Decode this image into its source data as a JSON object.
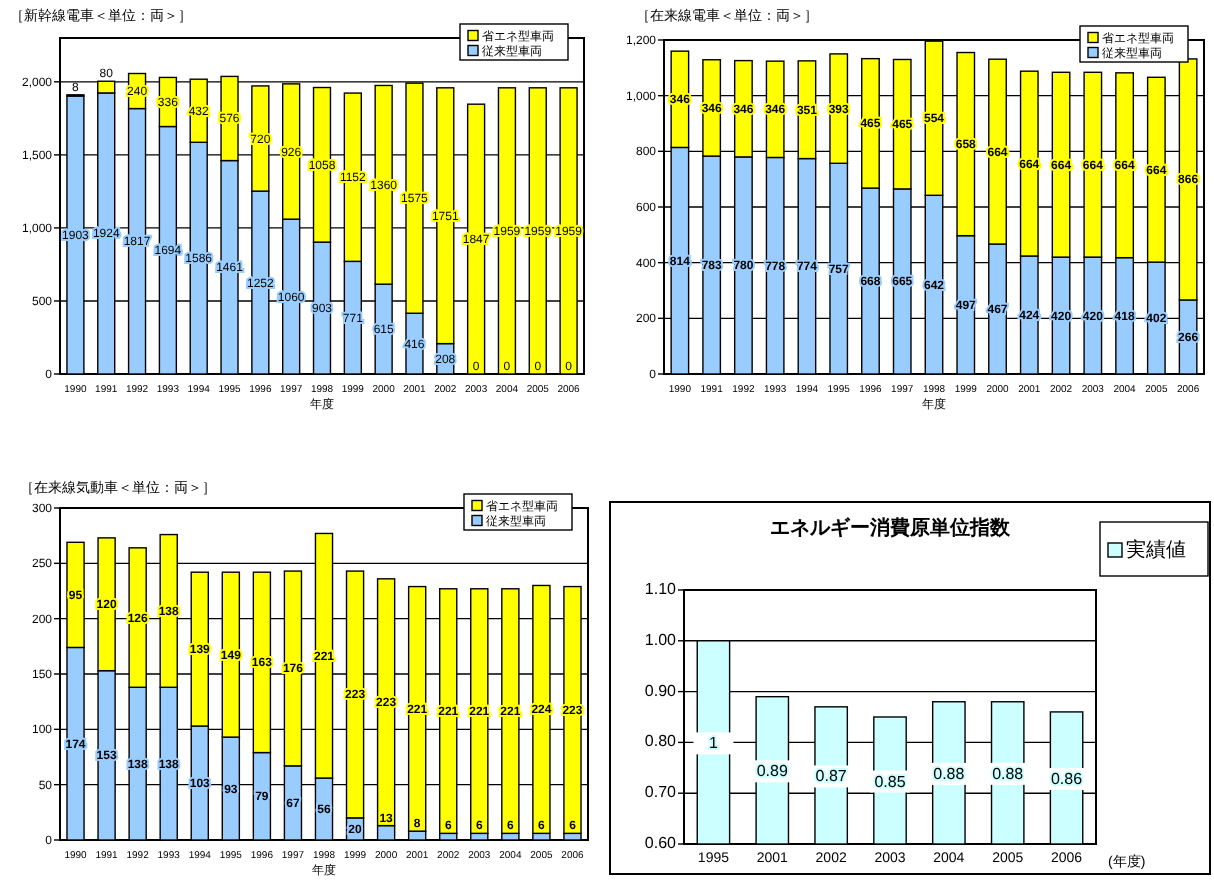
{
  "chart_data": [
    {
      "type": "bar",
      "title": "［新幹線電車＜単位：両＞］",
      "xlabel": "年度",
      "categories": [
        "1990",
        "1991",
        "1992",
        "1993",
        "1994",
        "1995",
        "1996",
        "1997",
        "1998",
        "1999",
        "2000",
        "2001",
        "2002",
        "2003",
        "2004",
        "2005",
        "2006"
      ],
      "stacked": true,
      "ylim": [
        0,
        2300
      ],
      "yticks": [
        0,
        500,
        {
          "value": 1000,
          "label": "1,000"
        },
        {
          "value": 1500,
          "label": "1,500"
        },
        {
          "value": 2000,
          "label": "2,000"
        }
      ],
      "grid": "y",
      "legend": "top right",
      "data_labels": true,
      "series": [
        {
          "name": "従来型車両",
          "color": "#99ccff",
          "values": [
            1903,
            1924,
            1817,
            1694,
            1586,
            1461,
            1252,
            1060,
            903,
            771,
            615,
            416,
            208,
            0,
            0,
            0,
            0
          ]
        },
        {
          "name": "省エネ型車両",
          "color": "#ffff00",
          "values": [
            8,
            80,
            240,
            336,
            432,
            576,
            720,
            926,
            1058,
            1152,
            1360,
            1575,
            1751,
            1847,
            1959,
            1959,
            1959
          ]
        }
      ]
    },
    {
      "type": "bar",
      "title": "［在来線電車＜単位：両＞］",
      "xlabel": "年度",
      "categories": [
        "1990",
        "1991",
        "1992",
        "1993",
        "1994",
        "1995",
        "1996",
        "1997",
        "1998",
        "1999",
        "2000",
        "2001",
        "2002",
        "2003",
        "2004",
        "2005",
        "2006"
      ],
      "stacked": true,
      "ylim": [
        0,
        1200
      ],
      "yticks": [
        0,
        200,
        400,
        600,
        800,
        {
          "value": 1000,
          "label": "1,000"
        },
        {
          "value": 1200,
          "label": "1,200"
        }
      ],
      "grid": "y",
      "legend": "top right",
      "data_labels": true,
      "series": [
        {
          "name": "従来型車両",
          "color": "#99ccff",
          "values": [
            814,
            783,
            780,
            778,
            774,
            757,
            668,
            665,
            642,
            497,
            467,
            424,
            420,
            420,
            418,
            402,
            266
          ]
        },
        {
          "name": "省エネ型車両",
          "color": "#ffff00",
          "values": [
            346,
            346,
            346,
            346,
            351,
            393,
            465,
            465,
            554,
            658,
            664,
            664,
            664,
            664,
            664,
            664,
            866
          ]
        }
      ]
    },
    {
      "type": "bar",
      "title": "［在来線気動車＜単位：両＞］",
      "xlabel": "年度",
      "categories": [
        "1990",
        "1991",
        "1992",
        "1993",
        "1994",
        "1995",
        "1996",
        "1997",
        "1998",
        "1999",
        "2000",
        "2001",
        "2002",
        "2003",
        "2004",
        "2005",
        "2006"
      ],
      "stacked": true,
      "ylim": [
        0,
        300
      ],
      "yticks": [
        0,
        50,
        100,
        150,
        200,
        250,
        300
      ],
      "grid": "y",
      "legend": "top right",
      "data_labels": true,
      "series": [
        {
          "name": "従来型車両",
          "color": "#99ccff",
          "values": [
            174,
            153,
            138,
            138,
            103,
            93,
            79,
            67,
            56,
            20,
            13,
            8,
            6,
            6,
            6,
            6,
            6
          ]
        },
        {
          "name": "省エネ型車両",
          "color": "#ffff00",
          "values": [
            95,
            120,
            126,
            138,
            139,
            149,
            163,
            176,
            221,
            223,
            223,
            221,
            221,
            221,
            221,
            224,
            223
          ]
        }
      ]
    },
    {
      "type": "bar",
      "title": "エネルギー消費原単位指数",
      "xlabel": "(年度)",
      "categories": [
        "1995",
        "2001",
        "2002",
        "2003",
        "2004",
        "2005",
        "2006"
      ],
      "ylim": [
        0.6,
        1.1
      ],
      "yticks": [
        {
          "value": 0.6,
          "label": "0.60"
        },
        {
          "value": 0.7,
          "label": "0.70"
        },
        {
          "value": 0.8,
          "label": "0.80"
        },
        {
          "value": 0.9,
          "label": "0.90"
        },
        {
          "value": 1.0,
          "label": "1.00"
        },
        {
          "value": 1.1,
          "label": "1.10"
        }
      ],
      "grid": "y",
      "legend": "right",
      "data_labels": true,
      "series": [
        {
          "name": "実績値",
          "color": "#ccffff",
          "values": [
            1,
            0.89,
            0.87,
            0.85,
            0.88,
            0.88,
            0.86
          ]
        }
      ]
    }
  ]
}
